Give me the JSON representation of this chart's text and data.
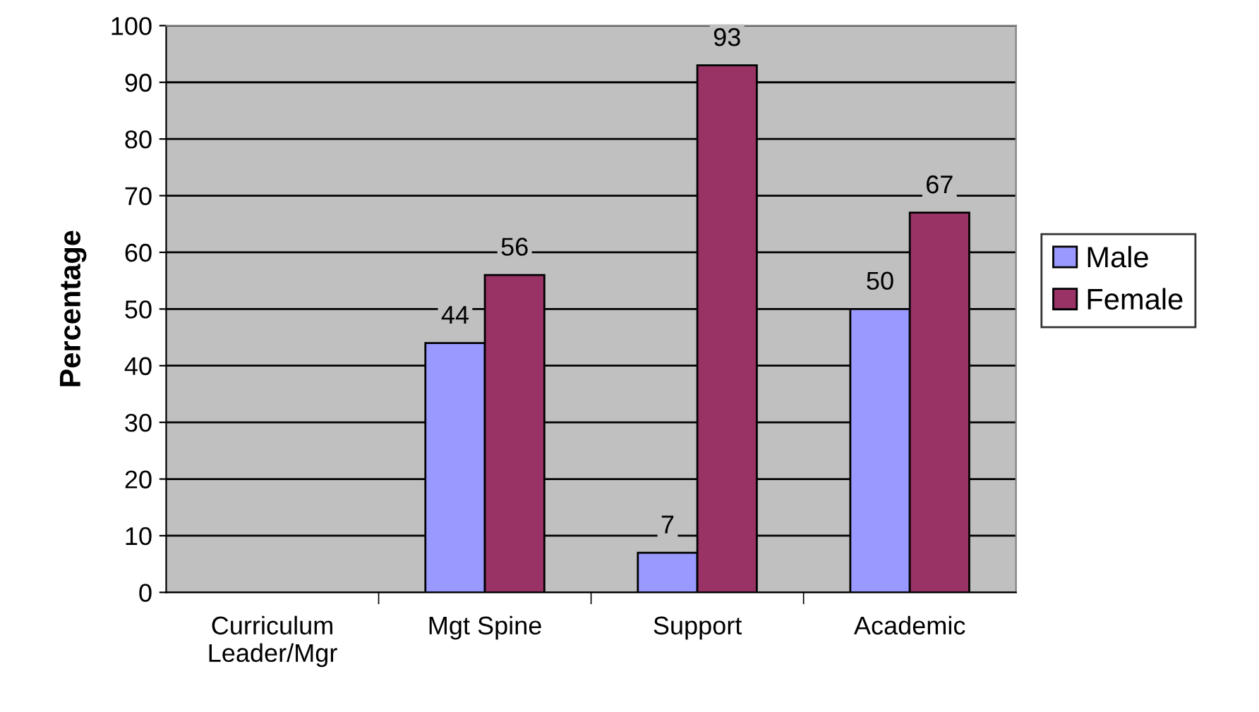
{
  "chart_data": {
    "type": "bar",
    "ylabel": "Percentage",
    "categories": [
      "Curriculum\nLeader/Mgr",
      "Mgt Spine",
      "Support",
      "Academic"
    ],
    "series": [
      {
        "name": "Male",
        "color": "#9999ff",
        "values": [
          null,
          44,
          7,
          50
        ]
      },
      {
        "name": "Female",
        "color": "#993366",
        "values": [
          null,
          56,
          93,
          67
        ]
      }
    ],
    "ylim": [
      0,
      100
    ],
    "yticks": [
      0,
      10,
      20,
      30,
      40,
      50,
      60,
      70,
      80,
      90,
      100
    ],
    "grid": "y",
    "legend": "right",
    "data_labels": true
  }
}
